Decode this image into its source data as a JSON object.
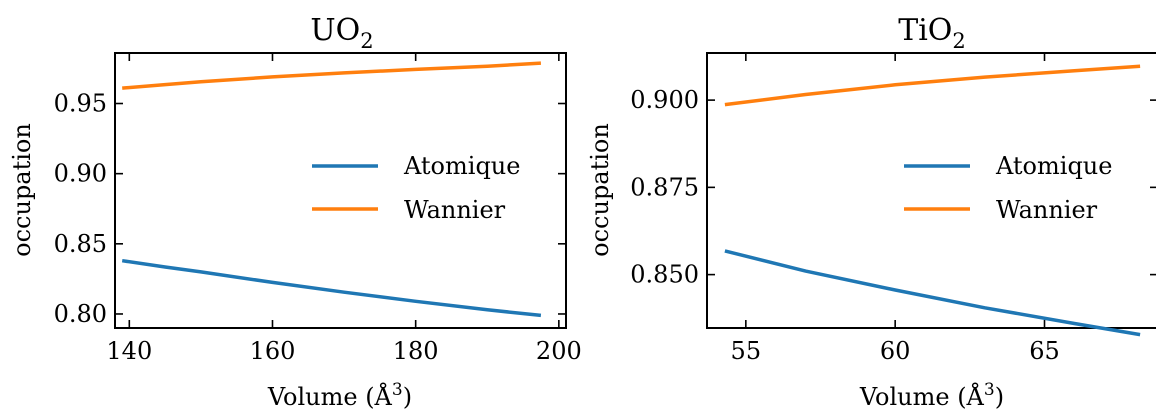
{
  "chart_data": [
    {
      "type": "line",
      "title": "UO",
      "title_sub": "2",
      "xlabel": "Volume (Å",
      "xlabel_sup": "3",
      "xlabel_end": ")",
      "ylabel": "occupation",
      "xlim": [
        138,
        201
      ],
      "ylim": [
        0.79,
        0.986
      ],
      "xticks": [
        140,
        160,
        180,
        200
      ],
      "yticks": [
        0.8,
        0.85,
        0.9,
        0.95
      ],
      "xtick_labels": [
        "140",
        "160",
        "180",
        "200"
      ],
      "ytick_labels": [
        "0.80",
        "0.85",
        "0.90",
        "0.95"
      ],
      "legend_position": "center-right",
      "series": [
        {
          "name": "Atomique",
          "color": "#1f77b4",
          "x": [
            139,
            145,
            150,
            160,
            170,
            180,
            190,
            197.5
          ],
          "values": [
            0.838,
            0.8335,
            0.83,
            0.8225,
            0.8155,
            0.809,
            0.803,
            0.799
          ]
        },
        {
          "name": "Wannier",
          "color": "#ff7f0e",
          "x": [
            139,
            145,
            150,
            160,
            170,
            180,
            190,
            197.5
          ],
          "values": [
            0.961,
            0.9635,
            0.9655,
            0.969,
            0.9718,
            0.9743,
            0.9766,
            0.9788
          ]
        }
      ]
    },
    {
      "type": "line",
      "title": "TiO",
      "title_sub": "2",
      "xlabel": "Volume (Å",
      "xlabel_sup": "3",
      "xlabel_end": ")",
      "ylabel": "occupation",
      "xlim": [
        53.7,
        68.8
      ],
      "ylim": [
        0.8347,
        0.9135
      ],
      "xticks": [
        55,
        60,
        65
      ],
      "yticks": [
        0.85,
        0.875,
        0.9
      ],
      "xtick_labels": [
        "55",
        "60",
        "65"
      ],
      "ytick_labels": [
        "0.850",
        "0.875",
        "0.900"
      ],
      "legend_position": "center-right",
      "series": [
        {
          "name": "Atomique",
          "color": "#1f77b4",
          "x": [
            54.3,
            57,
            60,
            63,
            66,
            68.2
          ],
          "values": [
            0.8568,
            0.851,
            0.8456,
            0.8405,
            0.836,
            0.8328
          ]
        },
        {
          "name": "Wannier",
          "color": "#ff7f0e",
          "x": [
            54.3,
            57,
            60,
            63,
            66,
            68.2
          ],
          "values": [
            0.8987,
            0.9016,
            0.9044,
            0.9066,
            0.9084,
            0.9097
          ]
        }
      ]
    }
  ]
}
